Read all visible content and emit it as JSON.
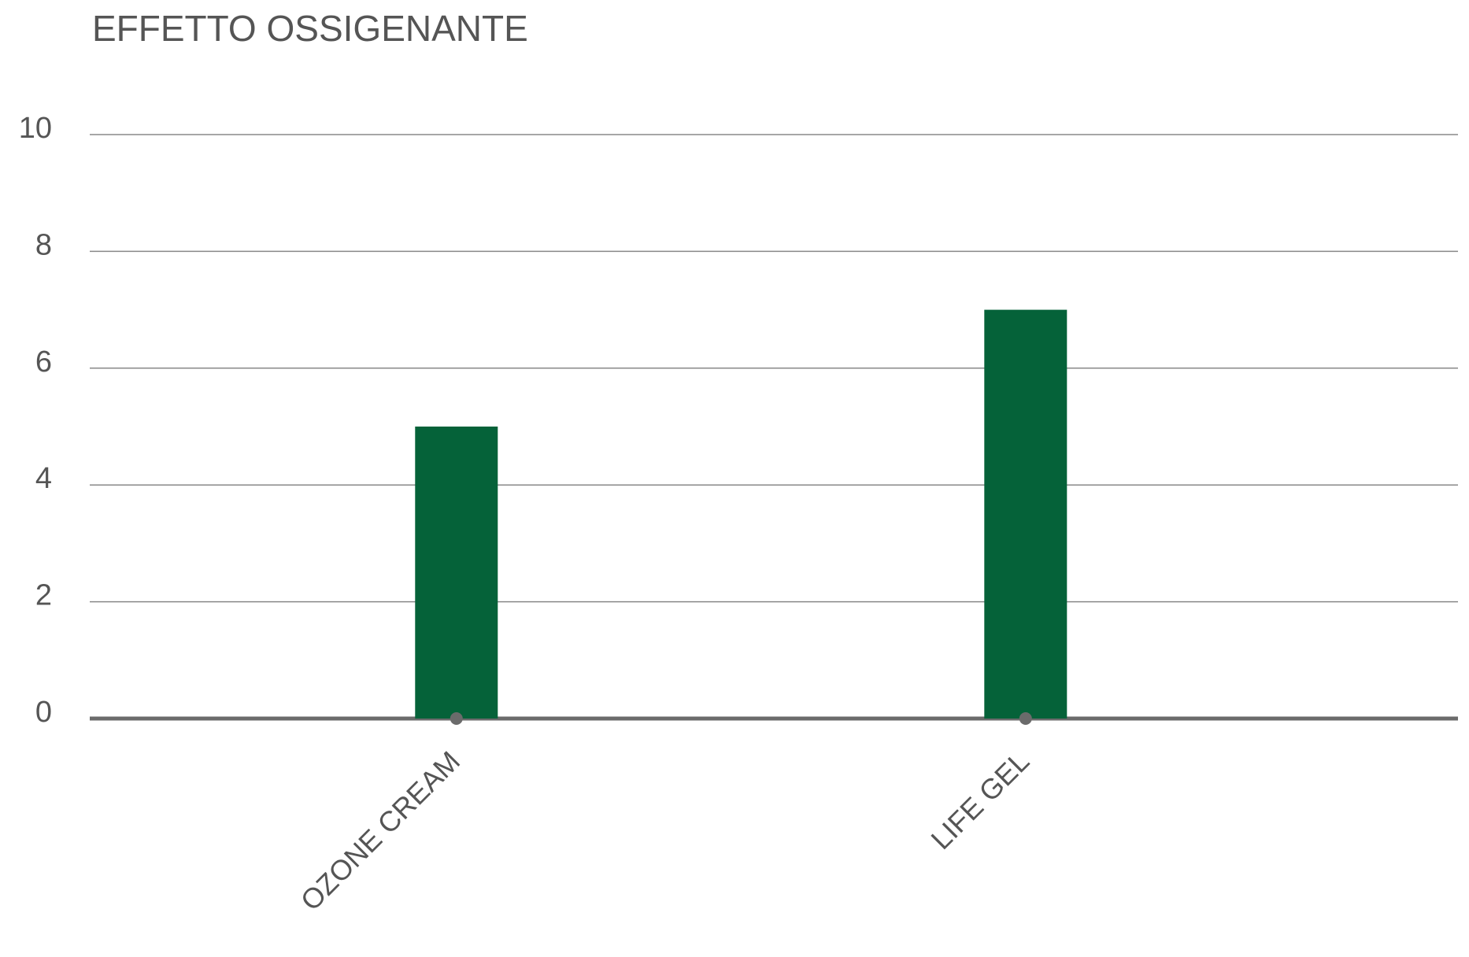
{
  "chart_data": {
    "type": "bar",
    "title": "EFFETTO OSSIGENANTE",
    "categories": [
      "OZONE CREAM",
      "LIFE GEL"
    ],
    "values": [
      5,
      7
    ],
    "color": "#056239",
    "ylim": [
      0,
      10
    ],
    "yticks": [
      0,
      2,
      4,
      6,
      8,
      10
    ],
    "grid": true
  }
}
